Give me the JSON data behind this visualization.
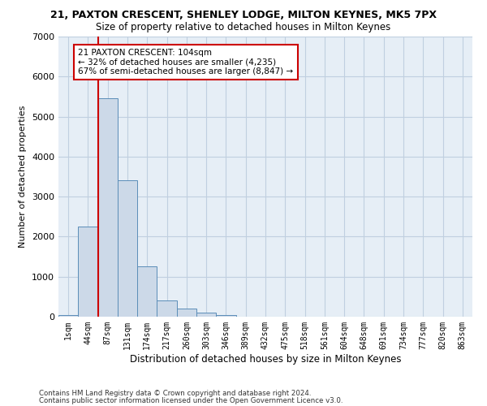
{
  "title1": "21, PAXTON CRESCENT, SHENLEY LODGE, MILTON KEYNES, MK5 7PX",
  "title2": "Size of property relative to detached houses in Milton Keynes",
  "xlabel": "Distribution of detached houses by size in Milton Keynes",
  "ylabel": "Number of detached properties",
  "footer1": "Contains HM Land Registry data © Crown copyright and database right 2024.",
  "footer2": "Contains public sector information licensed under the Open Government Licence v3.0.",
  "bar_labels": [
    "1sqm",
    "44sqm",
    "87sqm",
    "131sqm",
    "174sqm",
    "217sqm",
    "260sqm",
    "303sqm",
    "346sqm",
    "389sqm",
    "432sqm",
    "475sqm",
    "518sqm",
    "561sqm",
    "604sqm",
    "648sqm",
    "691sqm",
    "734sqm",
    "777sqm",
    "820sqm",
    "863sqm"
  ],
  "bar_values": [
    50,
    2250,
    5450,
    3400,
    1250,
    400,
    200,
    100,
    50,
    10,
    0,
    0,
    0,
    0,
    0,
    0,
    0,
    0,
    0,
    0,
    0
  ],
  "bar_color": "#ccd9e8",
  "bar_edge_color": "#5b8db8",
  "vline_x": 1.5,
  "vline_color": "#cc0000",
  "ylim": [
    0,
    7000
  ],
  "yticks": [
    0,
    1000,
    2000,
    3000,
    4000,
    5000,
    6000,
    7000
  ],
  "annotation_text": "21 PAXTON CRESCENT: 104sqm\n← 32% of detached houses are smaller (4,235)\n67% of semi-detached houses are larger (8,847) →",
  "annotation_box_color": "#ffffff",
  "annotation_box_edge": "#cc0000",
  "grid_color": "#c0cfe0",
  "bg_color": "#e6eef6"
}
